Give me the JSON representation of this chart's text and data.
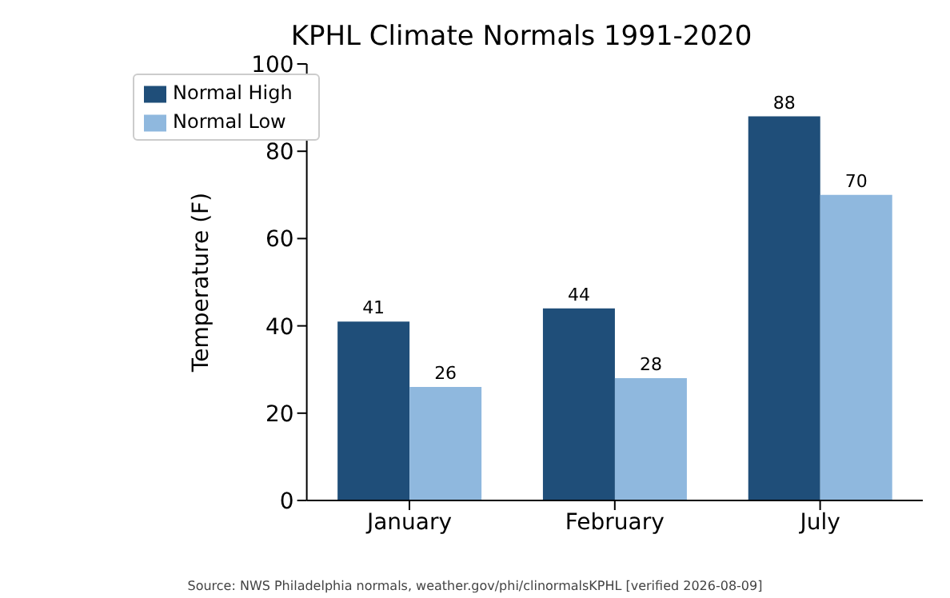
{
  "chart_data": {
    "type": "bar",
    "title": "KPHL Climate Normals 1991-2020",
    "ylabel": "Temperature (F)",
    "categories": [
      "January",
      "February",
      "July"
    ],
    "series": [
      {
        "name": "Normal High",
        "color": "#1f4e79",
        "values": [
          41,
          44,
          88
        ]
      },
      {
        "name": "Normal Low",
        "color": "#8fb8de",
        "values": [
          26,
          28,
          70
        ]
      }
    ],
    "ylim": [
      0,
      100
    ],
    "yticks": [
      0,
      20,
      40,
      60,
      80,
      100
    ],
    "grid": false,
    "legend": "top left",
    "data_labels": true,
    "annotations": [
      "Source: NWS Philadelphia normals, weather.gov/phi/clinormalsKPHL [verified 2026-08-09]"
    ]
  }
}
